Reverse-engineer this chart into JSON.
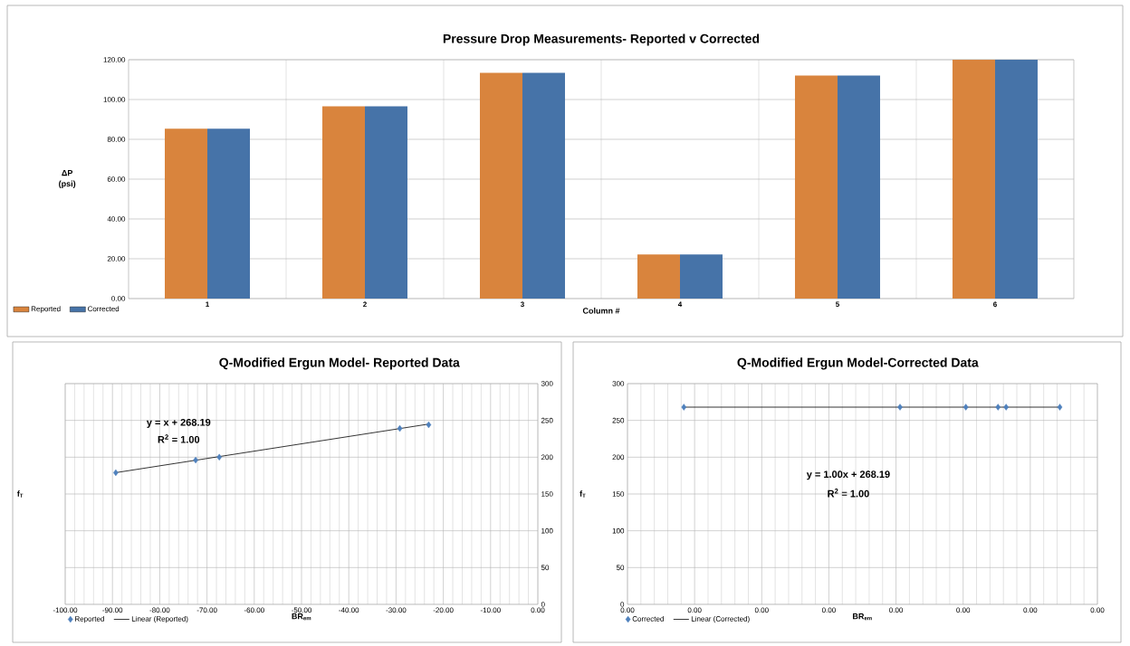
{
  "chart_data": [
    {
      "type": "bar",
      "title": "Pressure Drop Measurements- Reported v Corrected",
      "xlabel": "Column #",
      "ylabel": "ΔP (psi)",
      "categories": [
        "1",
        "2",
        "3",
        "4",
        "5",
        "6"
      ],
      "series": [
        {
          "name": "Reported",
          "color": "#d9843d",
          "values": [
            85.3,
            96.6,
            113.4,
            22.2,
            112.0,
            120.0
          ]
        },
        {
          "name": "Corrected",
          "color": "#4673a8",
          "values": [
            85.3,
            96.6,
            113.4,
            22.2,
            112.0,
            120.0
          ]
        }
      ],
      "ylim": [
        0,
        120
      ],
      "yticks": [
        {
          "value": 0,
          "label": "0.00"
        },
        {
          "value": 20,
          "label": "20.00"
        },
        {
          "value": 40,
          "label": "40.00"
        },
        {
          "value": 60,
          "label": "60.00"
        },
        {
          "value": 80,
          "label": "80.00"
        },
        {
          "value": 100,
          "label": "100.00"
        },
        {
          "value": 120,
          "label": "120.00"
        }
      ],
      "grid": true,
      "legend": "bottom left"
    },
    {
      "type": "scatter",
      "title": "Q-Modified Ergun Model- Reported Data",
      "xlabel": "BR$_{em}$",
      "ylabel": "f$_{T}$",
      "x": [
        -89.3,
        -72.4,
        -67.4,
        -29.2,
        -23.1
      ],
      "series": [
        {
          "name": "Reported",
          "color": "#4f81bd",
          "marker": "diamond",
          "values": [
            179,
            196,
            200,
            239,
            244
          ]
        },
        {
          "name": "Linear (Reported)",
          "type": "line",
          "color": "#000000",
          "x": [
            -89.3,
            -23.1
          ],
          "values": [
            179,
            245
          ]
        }
      ],
      "xlim": [
        -100,
        0
      ],
      "xticks": [
        {
          "value": -100,
          "label": "-100.00"
        },
        {
          "value": -90,
          "label": "-90.00"
        },
        {
          "value": -80,
          "label": "-80.00"
        },
        {
          "value": -70,
          "label": "-70.00"
        },
        {
          "value": -60,
          "label": "-60.00"
        },
        {
          "value": -50,
          "label": "-50.00"
        },
        {
          "value": -40,
          "label": "-40.00"
        },
        {
          "value": -30,
          "label": "-30.00"
        },
        {
          "value": -20,
          "label": "-20.00"
        },
        {
          "value": -10,
          "label": "-10.00"
        },
        {
          "value": 0,
          "label": "0.00"
        }
      ],
      "ylim": [
        0,
        300
      ],
      "yticks": [
        0,
        50,
        100,
        150,
        200,
        250,
        300
      ],
      "annotations": [
        "y = x + 268.19",
        "R$^{2}$ = 1.00"
      ],
      "grid": true,
      "legend": "bottom left"
    },
    {
      "type": "scatter",
      "title": "Q-Modified Ergun Model-Corrected Data",
      "xlabel": "BR$_{em}$",
      "ylabel": "f$_{T}$",
      "x": [
        0.00042,
        0.00203,
        0.00252,
        0.00276,
        0.00282,
        0.00322
      ],
      "series": [
        {
          "name": "Corrected",
          "color": "#4f81bd",
          "marker": "diamond",
          "values": [
            268,
            268,
            268,
            268,
            268,
            268
          ]
        },
        {
          "name": "Linear (Corrected)",
          "type": "line",
          "color": "#000000",
          "x": [
            0.00042,
            0.00322
          ],
          "values": [
            268,
            268
          ]
        }
      ],
      "xlim": [
        0,
        0.0035
      ],
      "xticks": [
        {
          "value": 0,
          "label": "0.00"
        },
        {
          "value": 0.0005,
          "label": "0.00"
        },
        {
          "value": 0.001,
          "label": "0.00"
        },
        {
          "value": 0.0015,
          "label": "0.00"
        },
        {
          "value": 0.002,
          "label": "0.00"
        },
        {
          "value": 0.0025,
          "label": "0.00"
        },
        {
          "value": 0.003,
          "label": "0.00"
        },
        {
          "value": 0.0035,
          "label": "0.00"
        }
      ],
      "ylim": [
        0,
        300
      ],
      "yticks": [
        0,
        50,
        100,
        150,
        200,
        250,
        300
      ],
      "annotations": [
        "y = 1.00x + 268.19",
        "R$^{2}$ = 1.00"
      ],
      "grid": true,
      "legend": "bottom left"
    }
  ]
}
